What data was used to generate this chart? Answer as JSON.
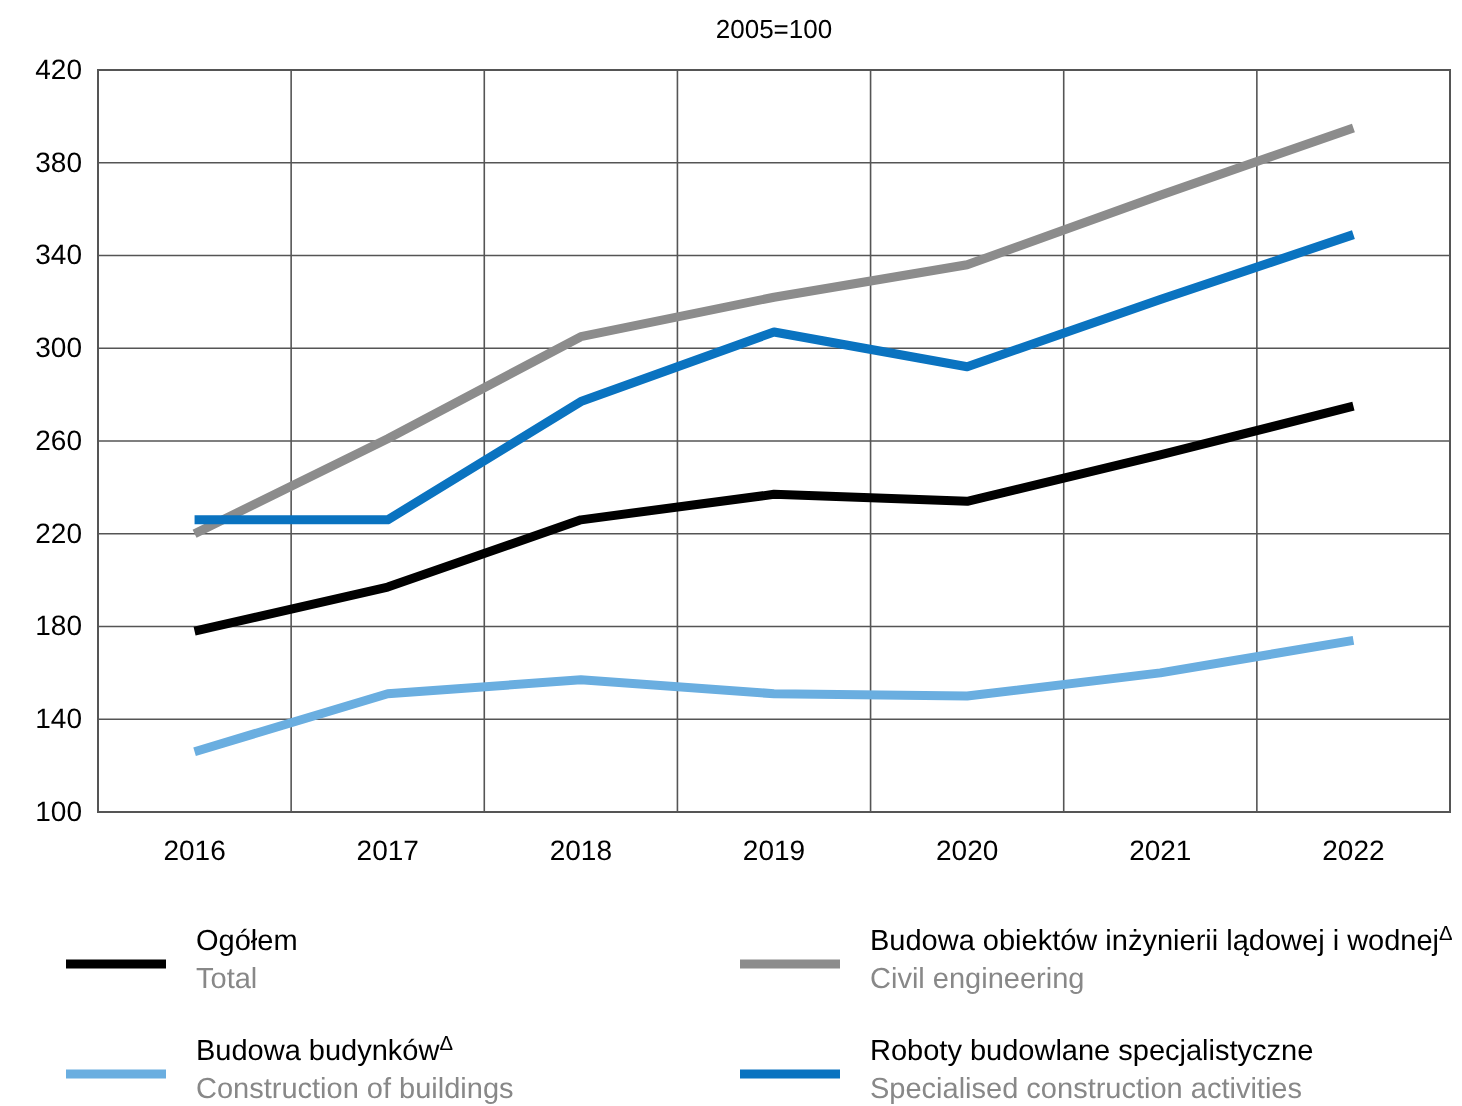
{
  "chart_data": {
    "type": "line",
    "title": "2005=100",
    "categories": [
      "2016",
      "2017",
      "2018",
      "2019",
      "2020",
      "2021",
      "2022"
    ],
    "ylim": [
      100,
      420
    ],
    "yticks": [
      100,
      140,
      180,
      220,
      260,
      300,
      340,
      380,
      420
    ],
    "grid": true,
    "legend": "bottom",
    "line_style": "solid",
    "marker": "none",
    "series": [
      {
        "name": "Ogółem\nTotal",
        "color": "#000000",
        "values": [
          178,
          197,
          226,
          237,
          234,
          254,
          275
        ]
      },
      {
        "name": "Budowa obiektów inżynierii lądowej i wodnej$^{Δ}$\nCivil engineering",
        "color": "#8c8c8c",
        "values": [
          220,
          261,
          305,
          322,
          336,
          366,
          395
        ]
      },
      {
        "name": "Budowa budynków$^{Δ}$\nConstruction of buildings",
        "color": "#6aaee0",
        "values": [
          126,
          151,
          157,
          151,
          150,
          160,
          174
        ]
      },
      {
        "name": "Roboty budowlane specjalistyczne\nSpecialised construction activities",
        "color": "#0a73c0",
        "values": [
          226,
          226,
          277,
          307,
          292,
          321,
          349
        ]
      }
    ]
  }
}
